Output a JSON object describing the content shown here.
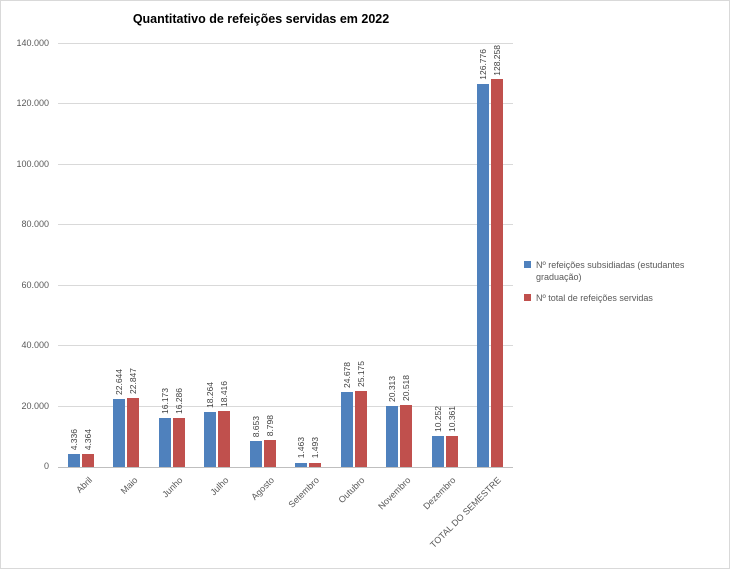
{
  "chart_data": {
    "type": "bar",
    "title": "Quantitativo de refeições servidas em 2022",
    "categories": [
      "Abril",
      "Maio",
      "Junho",
      "Julho",
      "Agosto",
      "Setembro",
      "Outubro",
      "Novembro",
      "Dezembro",
      "TOTAL DO SEMESTRE"
    ],
    "series": [
      {
        "name": "Nº refeições subsidiadas (estudantes graduação)",
        "color": "#4F81BD",
        "values": [
          4336,
          22644,
          16173,
          18264,
          8653,
          1463,
          24678,
          20313,
          10252,
          126776
        ],
        "labels": [
          "4.336",
          "22.644",
          "16.173",
          "18.264",
          "8.653",
          "1.463",
          "24.678",
          "20.313",
          "10.252",
          "126.776"
        ]
      },
      {
        "name": "Nº total de refeições servidas",
        "color": "#C0504D",
        "values": [
          4364,
          22847,
          16286,
          18416,
          8798,
          1493,
          25175,
          20518,
          10361,
          128258
        ],
        "labels": [
          "4.364",
          "22.847",
          "16.286",
          "18.416",
          "8.798",
          "1.493",
          "25.175",
          "20.518",
          "10.361",
          "128.258"
        ]
      }
    ],
    "ylim": [
      0,
      140000
    ],
    "ytick_step": 20000,
    "ytick_labels": [
      "0",
      "20.000",
      "40.000",
      "60.000",
      "80.000",
      "100.000",
      "120.000",
      "140.000"
    ],
    "grid": true,
    "legend_position": "right"
  }
}
